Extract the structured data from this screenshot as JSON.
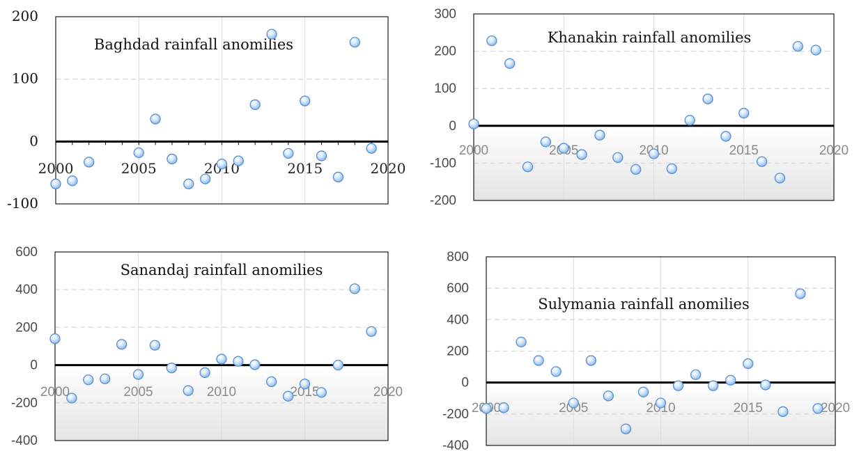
{
  "chart_data": [
    {
      "type": "scatter",
      "title": "Baghdad rainfall anomilies",
      "xlim": [
        2000,
        2020
      ],
      "ylim": [
        -100,
        200
      ],
      "yticks": [
        200,
        100,
        0,
        -100
      ],
      "xticks": [
        2000,
        2005,
        2010,
        2015,
        2020
      ],
      "grid": true,
      "x": [
        2000,
        2001,
        2002,
        2005,
        2006,
        2007,
        2008,
        2009,
        2010,
        2011,
        2012,
        2013,
        2014,
        2015,
        2016,
        2017,
        2018,
        2019
      ],
      "y": [
        -68,
        -63,
        -33,
        -18,
        36,
        -28,
        -68,
        -60,
        -36,
        -31,
        59,
        172,
        -19,
        65,
        -23,
        -57,
        159,
        -11
      ]
    },
    {
      "type": "scatter",
      "title": "Khanakin rainfall anomilies",
      "xlim": [
        2000,
        2020
      ],
      "ylim": [
        -200,
        300
      ],
      "yticks": [
        300,
        200,
        100,
        0,
        -100,
        -200
      ],
      "xticks": [
        2000,
        2005,
        2010,
        2015,
        2020
      ],
      "grid": true,
      "x": [
        2000,
        2001,
        2002,
        2003,
        2004,
        2005,
        2006,
        2007,
        2008,
        2009,
        2010,
        2011,
        2012,
        2013,
        2014,
        2015,
        2016,
        2017,
        2018,
        2019
      ],
      "y": [
        5,
        228,
        167,
        -110,
        -43,
        -60,
        -77,
        -25,
        -85,
        -117,
        -75,
        -115,
        15,
        72,
        -28,
        34,
        -96,
        -140,
        213,
        203
      ]
    },
    {
      "type": "scatter",
      "title": "Sanandaj rainfall anomilies",
      "xlim": [
        2000,
        2020
      ],
      "ylim": [
        -400,
        600
      ],
      "yticks": [
        600,
        400,
        200,
        0,
        -200,
        -400
      ],
      "xticks": [
        2000,
        2005,
        2010,
        2015,
        2020
      ],
      "grid": true,
      "x": [
        2000,
        2001,
        2002,
        2003,
        2004,
        2005,
        2006,
        2007,
        2008,
        2009,
        2010,
        2011,
        2012,
        2013,
        2014,
        2015,
        2016,
        2017,
        2018,
        2019
      ],
      "y": [
        140,
        -175,
        -78,
        -73,
        110,
        -50,
        105,
        -15,
        -135,
        -40,
        32,
        20,
        2,
        -88,
        -165,
        -100,
        -145,
        0,
        405,
        178
      ]
    },
    {
      "type": "scatter",
      "title": "Sulymania rainfall anomilies",
      "xlim": [
        2000,
        2020
      ],
      "ylim": [
        -400,
        800
      ],
      "yticks": [
        800,
        600,
        400,
        200,
        0,
        -200,
        -400
      ],
      "xticks": [
        2000,
        2005,
        2010,
        2015,
        2020
      ],
      "grid": true,
      "x": [
        2000,
        2001,
        2002,
        2003,
        2004,
        2005,
        2006,
        2007,
        2008,
        2009,
        2010,
        2011,
        2012,
        2013,
        2014,
        2015,
        2016,
        2017,
        2018,
        2019
      ],
      "y": [
        -165,
        -160,
        258,
        140,
        70,
        -130,
        140,
        -85,
        -295,
        -60,
        -130,
        -20,
        50,
        -20,
        15,
        120,
        -15,
        -185,
        565,
        -165
      ]
    }
  ]
}
